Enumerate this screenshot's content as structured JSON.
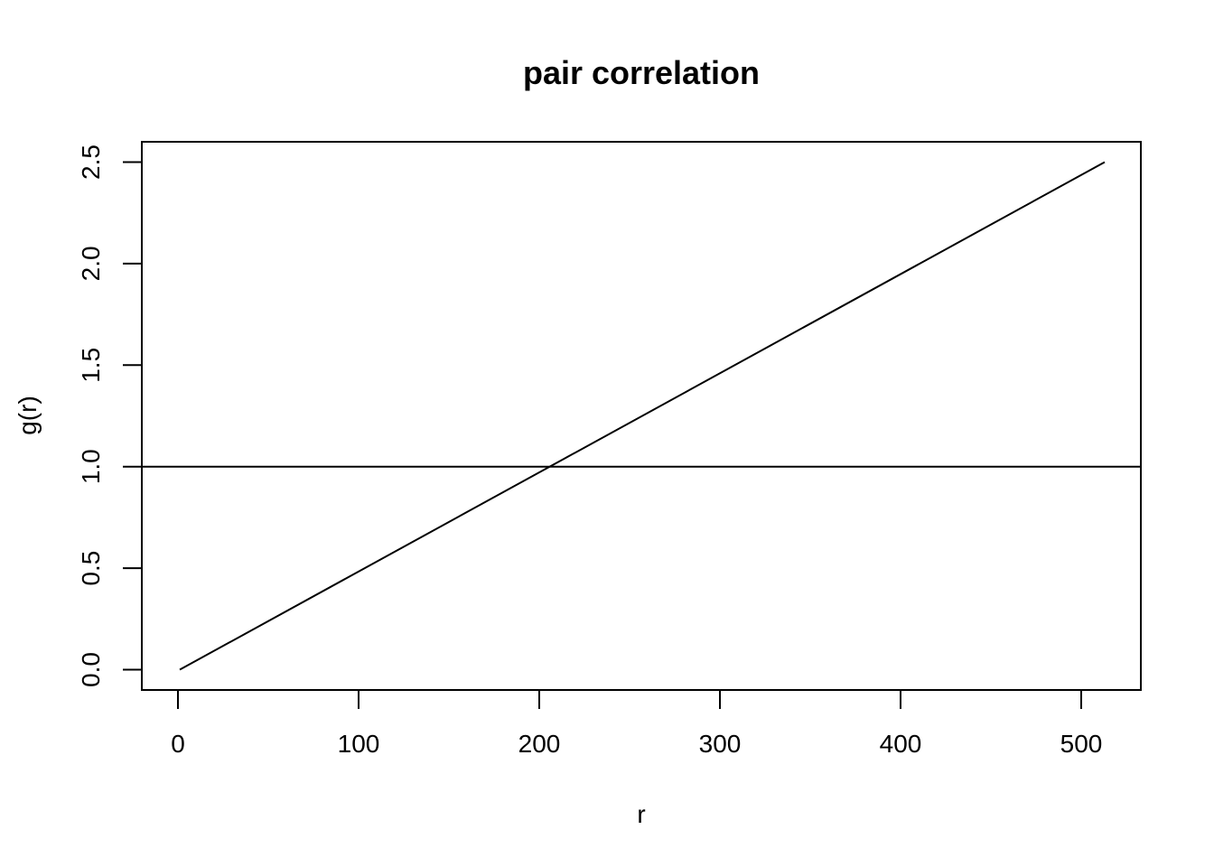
{
  "chart_data": {
    "type": "line",
    "title": "pair correlation",
    "xlabel": "r",
    "ylabel": "g(r)",
    "xlim": [
      -20,
      533
    ],
    "ylim": [
      -0.1,
      2.6
    ],
    "x_ticks": [
      0,
      100,
      200,
      300,
      400,
      500
    ],
    "x_tick_labels": [
      "0",
      "100",
      "200",
      "300",
      "400",
      "500"
    ],
    "y_ticks": [
      0.0,
      0.5,
      1.0,
      1.5,
      2.0,
      2.5
    ],
    "y_tick_labels": [
      "0.0",
      "0.5",
      "1.0",
      "1.5",
      "2.0",
      "2.5"
    ],
    "series": [
      {
        "x": [
          1,
          513
        ],
        "y": [
          0.0,
          2.5
        ]
      }
    ],
    "reference_lines": [
      {
        "orientation": "horizontal",
        "y": 1.0
      }
    ],
    "grid": false,
    "legend": "none"
  }
}
